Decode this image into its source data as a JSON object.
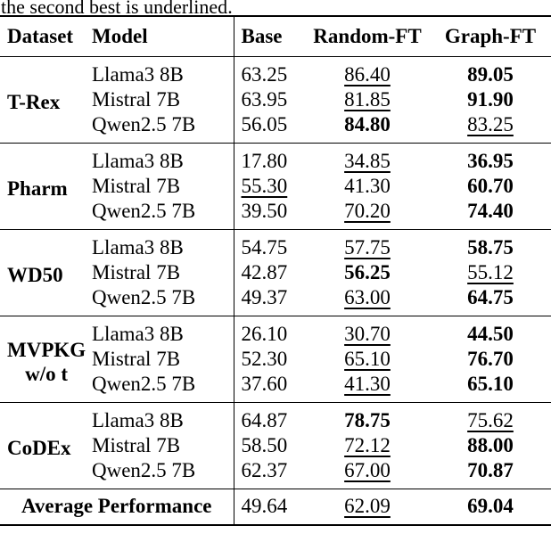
{
  "caption": {
    "prefix": "the second best is ",
    "underlined_word": "underlined",
    "suffix": "."
  },
  "table": {
    "headers": [
      "Dataset",
      "Model",
      "Base",
      "Random-FT",
      "Graph-FT"
    ],
    "groups": [
      {
        "dataset": "T-Rex",
        "dataset_line2": "",
        "rows": [
          {
            "model": "Llama3 8B",
            "base": {
              "value": "63.25",
              "emph": "plain"
            },
            "random_ft": {
              "value": "86.40",
              "emph": "underline"
            },
            "graph_ft": {
              "value": "89.05",
              "emph": "bold"
            }
          },
          {
            "model": "Mistral 7B",
            "base": {
              "value": "63.95",
              "emph": "plain"
            },
            "random_ft": {
              "value": "81.85",
              "emph": "underline"
            },
            "graph_ft": {
              "value": "91.90",
              "emph": "bold"
            }
          },
          {
            "model": "Qwen2.5 7B",
            "base": {
              "value": "56.05",
              "emph": "plain"
            },
            "random_ft": {
              "value": "84.80",
              "emph": "bold"
            },
            "graph_ft": {
              "value": "83.25",
              "emph": "underline"
            }
          }
        ]
      },
      {
        "dataset": "Pharm",
        "dataset_line2": "",
        "rows": [
          {
            "model": "Llama3 8B",
            "base": {
              "value": "17.80",
              "emph": "plain"
            },
            "random_ft": {
              "value": "34.85",
              "emph": "underline"
            },
            "graph_ft": {
              "value": "36.95",
              "emph": "bold"
            }
          },
          {
            "model": "Mistral 7B",
            "base": {
              "value": "55.30",
              "emph": "underline"
            },
            "random_ft": {
              "value": "41.30",
              "emph": "plain"
            },
            "graph_ft": {
              "value": "60.70",
              "emph": "bold"
            }
          },
          {
            "model": "Qwen2.5 7B",
            "base": {
              "value": "39.50",
              "emph": "plain"
            },
            "random_ft": {
              "value": "70.20",
              "emph": "underline"
            },
            "graph_ft": {
              "value": "74.40",
              "emph": "bold"
            }
          }
        ]
      },
      {
        "dataset": "WD50",
        "dataset_line2": "",
        "rows": [
          {
            "model": "Llama3 8B",
            "base": {
              "value": "54.75",
              "emph": "plain"
            },
            "random_ft": {
              "value": "57.75",
              "emph": "underline"
            },
            "graph_ft": {
              "value": "58.75",
              "emph": "bold"
            }
          },
          {
            "model": "Mistral 7B",
            "base": {
              "value": "42.87",
              "emph": "plain"
            },
            "random_ft": {
              "value": "56.25",
              "emph": "bold"
            },
            "graph_ft": {
              "value": "55.12",
              "emph": "underline"
            }
          },
          {
            "model": "Qwen2.5 7B",
            "base": {
              "value": "49.37",
              "emph": "plain"
            },
            "random_ft": {
              "value": "63.00",
              "emph": "underline"
            },
            "graph_ft": {
              "value": "64.75",
              "emph": "bold"
            }
          }
        ]
      },
      {
        "dataset": "MVPKG",
        "dataset_line2": "w/o t",
        "rows": [
          {
            "model": "Llama3 8B",
            "base": {
              "value": "26.10",
              "emph": "plain"
            },
            "random_ft": {
              "value": "30.70",
              "emph": "underline"
            },
            "graph_ft": {
              "value": "44.50",
              "emph": "bold"
            }
          },
          {
            "model": "Mistral 7B",
            "base": {
              "value": "52.30",
              "emph": "plain"
            },
            "random_ft": {
              "value": "65.10",
              "emph": "underline"
            },
            "graph_ft": {
              "value": "76.70",
              "emph": "bold"
            }
          },
          {
            "model": "Qwen2.5 7B",
            "base": {
              "value": "37.60",
              "emph": "plain"
            },
            "random_ft": {
              "value": "41.30",
              "emph": "underline"
            },
            "graph_ft": {
              "value": "65.10",
              "emph": "bold"
            }
          }
        ]
      },
      {
        "dataset": "CoDEx",
        "dataset_line2": "",
        "rows": [
          {
            "model": "Llama3 8B",
            "base": {
              "value": "64.87",
              "emph": "plain"
            },
            "random_ft": {
              "value": "78.75",
              "emph": "bold"
            },
            "graph_ft": {
              "value": "75.62",
              "emph": "underline"
            }
          },
          {
            "model": "Mistral 7B",
            "base": {
              "value": "58.50",
              "emph": "plain"
            },
            "random_ft": {
              "value": "72.12",
              "emph": "underline"
            },
            "graph_ft": {
              "value": "88.00",
              "emph": "bold"
            }
          },
          {
            "model": "Qwen2.5 7B",
            "base": {
              "value": "62.37",
              "emph": "plain"
            },
            "random_ft": {
              "value": "67.00",
              "emph": "underline"
            },
            "graph_ft": {
              "value": "70.87",
              "emph": "bold"
            }
          }
        ]
      }
    ],
    "average": {
      "label": "Average Performance",
      "base": {
        "value": "49.64",
        "emph": "plain"
      },
      "random_ft": {
        "value": "62.09",
        "emph": "underline"
      },
      "graph_ft": {
        "value": "69.04",
        "emph": "bold"
      }
    }
  }
}
